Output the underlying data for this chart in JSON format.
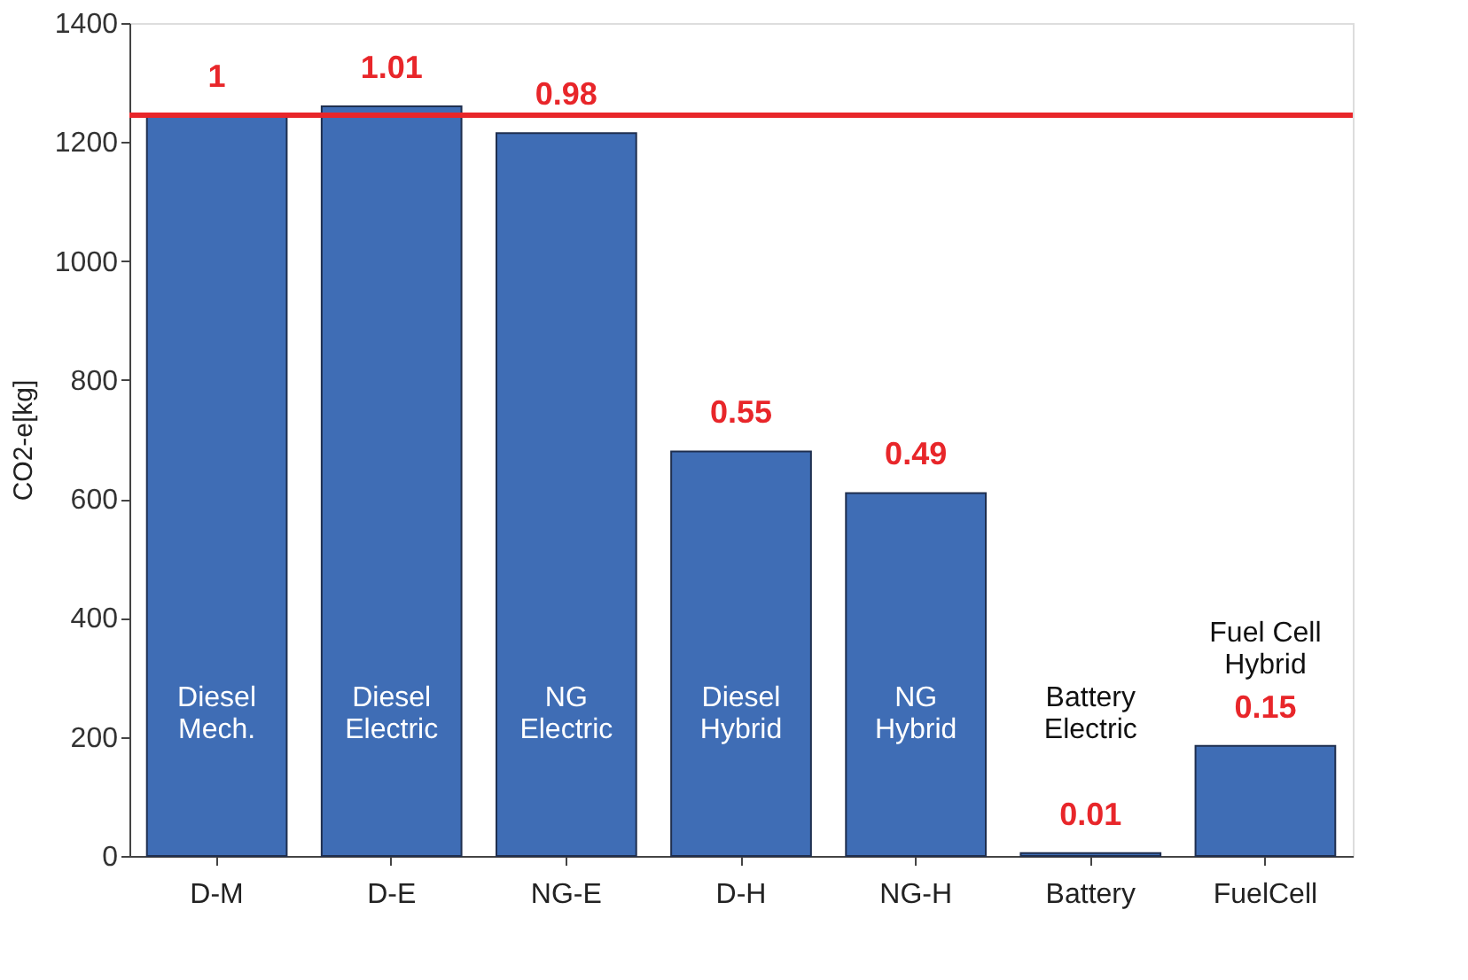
{
  "chart_data": {
    "type": "bar",
    "ylabel": "CO2-e[kg]",
    "categories": [
      "D-M",
      "D-E",
      "NG-E",
      "D-H",
      "NG-H",
      "Battery",
      "FuelCell"
    ],
    "values": [
      1245,
      1260,
      1215,
      680,
      610,
      5,
      185
    ],
    "color": "#3f6db5",
    "ylim": [
      0,
      1400
    ],
    "yticks": [
      0,
      200,
      400,
      600,
      800,
      1000,
      1200,
      1400
    ],
    "grid": false,
    "ref_lines": [
      {
        "axis": "y",
        "value": 1245,
        "color": "#e8262a"
      }
    ],
    "annotations": [
      "Diesel\nMech.",
      "Diesel\nElectric",
      "NG\nElectric",
      "Diesel\nHybrid",
      "NG\nHybrid",
      "Battery\nElectric",
      "Fuel Cell\nHybrid",
      {
        "text": "1",
        "x": "D-M",
        "y": 1245
      },
      {
        "text": "1.01",
        "x": "D-E",
        "y": 1260
      },
      {
        "text": "0.98",
        "x": "NG-E",
        "y": 1215
      },
      {
        "text": "0.55",
        "x": "D-H",
        "y": 680
      },
      {
        "text": "0.49",
        "x": "NG-H",
        "y": 610
      },
      {
        "text": "0.01",
        "x": "Battery",
        "y": 5
      },
      {
        "text": "0.15",
        "x": "FuelCell",
        "y": 185
      }
    ]
  }
}
